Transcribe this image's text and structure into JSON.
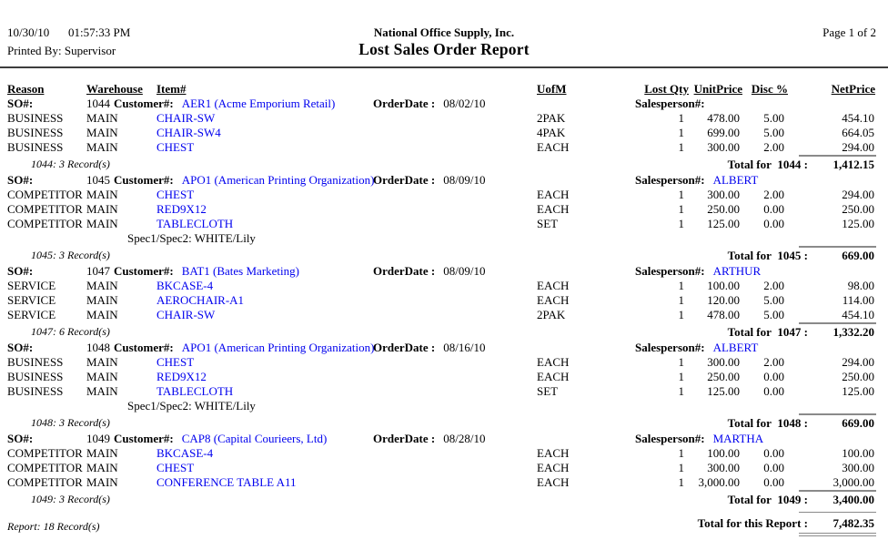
{
  "page": {
    "date": "10/30/10",
    "time": "01:57:33 PM",
    "printed_by": "Printed By: Supervisor",
    "company": "National Office Supply, Inc.",
    "title": "Lost Sales Order Report",
    "page_indicator": "Page 1 of 2"
  },
  "columns": {
    "reason": "Reason",
    "warehouse": "Warehouse",
    "item": "Item#",
    "uofm": "UofM",
    "lost_qty": "Lost Qty",
    "unit_price": "UnitPrice",
    "disc": "Disc %",
    "net_price": "NetPrice"
  },
  "labels": {
    "so": "SO#:",
    "customer": "Customer#:",
    "order_date": "OrderDate :",
    "salesperson": "Salesperson#:",
    "total_for": "Total for"
  },
  "groups": [
    {
      "so": "1044",
      "customer": "AER1 (Acme Emporium Retail)",
      "order_date": "08/02/10",
      "salesperson": "",
      "rows": [
        {
          "reason": "BUSINESS",
          "warehouse": "MAIN",
          "item": "CHAIR-SW",
          "uofm": "2PAK",
          "qty": "1",
          "unit": "478.00",
          "disc": "5.00",
          "net": "454.10"
        },
        {
          "reason": "BUSINESS",
          "warehouse": "MAIN",
          "item": "CHAIR-SW4",
          "uofm": "4PAK",
          "qty": "1",
          "unit": "699.00",
          "disc": "5.00",
          "net": "664.05"
        },
        {
          "reason": "BUSINESS",
          "warehouse": "MAIN",
          "item": "CHEST",
          "uofm": "EACH",
          "qty": "1",
          "unit": "300.00",
          "disc": "2.00",
          "net": "294.00"
        }
      ],
      "record_count": "1044: 3 Record(s)",
      "total_so": "1044 :",
      "total": "1,412.15"
    },
    {
      "so": "1045",
      "customer": "APO1 (American Printing Organization)",
      "order_date": "08/09/10",
      "salesperson": "ALBERT",
      "rows": [
        {
          "reason": "COMPETITOR",
          "warehouse": "MAIN",
          "item": "CHEST",
          "uofm": "EACH",
          "qty": "1",
          "unit": "300.00",
          "disc": "2.00",
          "net": "294.00"
        },
        {
          "reason": "COMPETITOR",
          "warehouse": "MAIN",
          "item": "RED9X12",
          "uofm": "EACH",
          "qty": "1",
          "unit": "250.00",
          "disc": "0.00",
          "net": "250.00"
        },
        {
          "reason": "COMPETITOR",
          "warehouse": "MAIN",
          "item": "TABLECLOTH",
          "uofm": "SET",
          "qty": "1",
          "unit": "125.00",
          "disc": "0.00",
          "net": "125.00",
          "spec": "Spec1/Spec2: WHITE/Lily"
        }
      ],
      "record_count": "1045: 3 Record(s)",
      "total_so": "1045 :",
      "total": "669.00"
    },
    {
      "so": "1047",
      "customer": "BAT1 (Bates Marketing)",
      "order_date": "08/09/10",
      "salesperson": "ARTHUR",
      "rows": [
        {
          "reason": "SERVICE",
          "warehouse": "MAIN",
          "item": "BKCASE-4",
          "uofm": "EACH",
          "qty": "1",
          "unit": "100.00",
          "disc": "2.00",
          "net": "98.00"
        },
        {
          "reason": "SERVICE",
          "warehouse": "MAIN",
          "item": "AEROCHAIR-A1",
          "uofm": "EACH",
          "qty": "1",
          "unit": "120.00",
          "disc": "5.00",
          "net": "114.00"
        },
        {
          "reason": "SERVICE",
          "warehouse": "MAIN",
          "item": "CHAIR-SW",
          "uofm": "2PAK",
          "qty": "1",
          "unit": "478.00",
          "disc": "5.00",
          "net": "454.10"
        }
      ],
      "record_count": "1047: 6 Record(s)",
      "total_so": "1047 :",
      "total": "1,332.20"
    },
    {
      "so": "1048",
      "customer": "APO1 (American Printing Organization)",
      "order_date": "08/16/10",
      "salesperson": "ALBERT",
      "rows": [
        {
          "reason": "BUSINESS",
          "warehouse": "MAIN",
          "item": "CHEST",
          "uofm": "EACH",
          "qty": "1",
          "unit": "300.00",
          "disc": "2.00",
          "net": "294.00"
        },
        {
          "reason": "BUSINESS",
          "warehouse": "MAIN",
          "item": "RED9X12",
          "uofm": "EACH",
          "qty": "1",
          "unit": "250.00",
          "disc": "0.00",
          "net": "250.00"
        },
        {
          "reason": "BUSINESS",
          "warehouse": "MAIN",
          "item": "TABLECLOTH",
          "uofm": "SET",
          "qty": "1",
          "unit": "125.00",
          "disc": "0.00",
          "net": "125.00",
          "spec": "Spec1/Spec2: WHITE/Lily"
        }
      ],
      "record_count": "1048: 3 Record(s)",
      "total_so": "1048 :",
      "total": "669.00"
    },
    {
      "so": "1049",
      "customer": "CAP8 (Capital Courieers, Ltd)",
      "order_date": "08/28/10",
      "salesperson": "MARTHA",
      "rows": [
        {
          "reason": "COMPETITOR",
          "warehouse": "MAIN",
          "item": "BKCASE-4",
          "uofm": "EACH",
          "qty": "1",
          "unit": "100.00",
          "disc": "0.00",
          "net": "100.00"
        },
        {
          "reason": "COMPETITOR",
          "warehouse": "MAIN",
          "item": "CHEST",
          "uofm": "EACH",
          "qty": "1",
          "unit": "300.00",
          "disc": "0.00",
          "net": "300.00"
        },
        {
          "reason": "COMPETITOR",
          "warehouse": "MAIN",
          "item": "CONFERENCE TABLE A11",
          "uofm": "EACH",
          "qty": "1",
          "unit": "3,000.00",
          "disc": "0.00",
          "net": "3,000.00"
        }
      ],
      "record_count": "1049: 3 Record(s)",
      "total_so": "1049 :",
      "total": "3,400.00"
    }
  ],
  "report_footer": {
    "record_count": "Report: 18 Record(s)",
    "total_label": "Total for this Report :",
    "total": "7,482.35"
  },
  "colors": {
    "link": "#0000ee",
    "rule": "#8a8a8a"
  }
}
